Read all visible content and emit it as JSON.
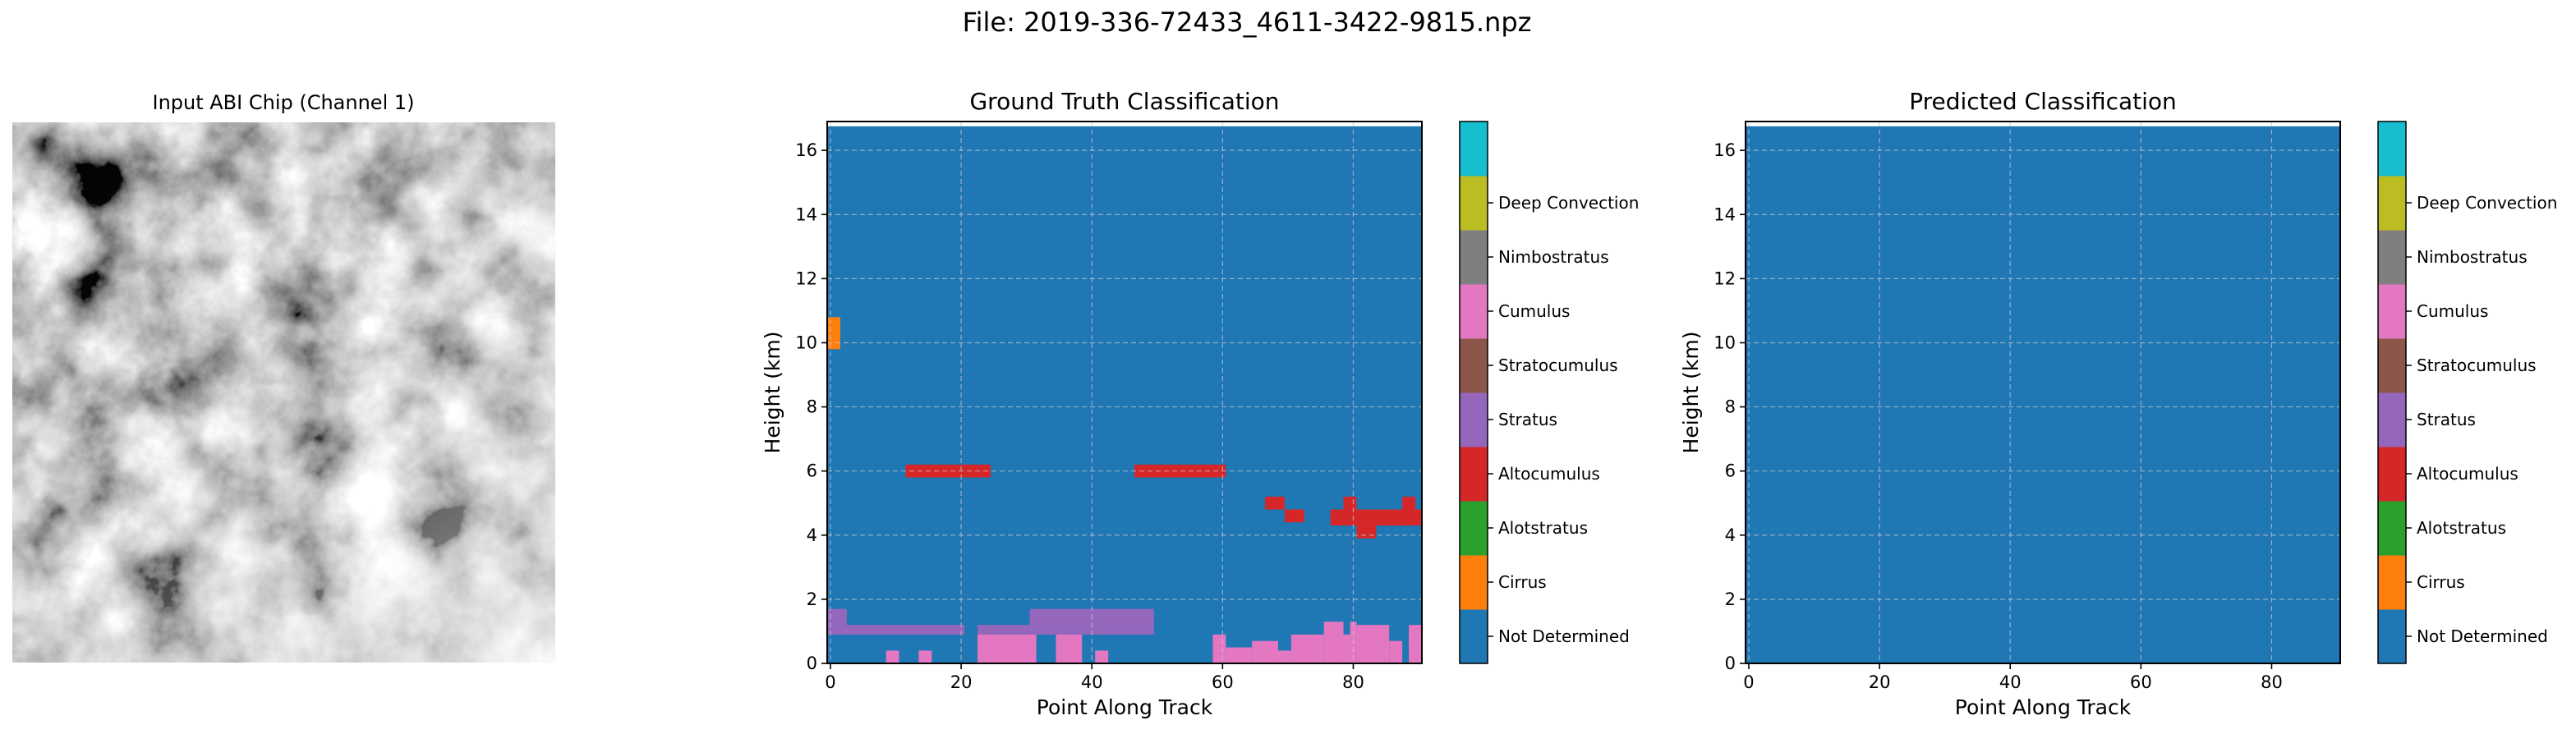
{
  "figure": {
    "title": "File: 2019-336-72433_4611-3422-9815.npz"
  },
  "input_panel": {
    "title": "Input ABI Chip (Channel 1)"
  },
  "colors": {
    "Not Determined": "#1f77b4",
    "Cirrus": "#ff7f0e",
    "Alotstratus": "#2ca02c",
    "Altocumulus": "#d62728",
    "Stratus": "#9467bd",
    "Stratocumulus": "#8c564b",
    "Cumulus": "#e377c2",
    "Nimbostratus": "#7f7f7f",
    "Deep Convection": "#bcbd22",
    "top": "#17becf"
  },
  "legend": {
    "labels": [
      "Not Determined",
      "Cirrus",
      "Alotstratus",
      "Altocumulus",
      "Stratus",
      "Stratocumulus",
      "Cumulus",
      "Nimbostratus",
      "Deep Convection"
    ]
  },
  "chart_data": [
    {
      "type": "heatmap",
      "title": "Ground Truth Classification",
      "xlabel": "Point Along Track",
      "ylabel": "Height (km)",
      "xlim": [
        -0.5,
        90.5
      ],
      "ylim": [
        0,
        16.9
      ],
      "xticks": [
        0,
        20,
        40,
        60,
        80
      ],
      "yticks": [
        0,
        2,
        4,
        6,
        8,
        10,
        12,
        14,
        16
      ],
      "grid": true,
      "background_class": "Not Determined",
      "regions": [
        {
          "class": "Cirrus",
          "x": [
            -0.5,
            1.5
          ],
          "y": [
            9.8,
            10.8
          ]
        },
        {
          "class": "Altocumulus",
          "x": [
            11.5,
            24.5
          ],
          "y": [
            5.8,
            6.2
          ]
        },
        {
          "class": "Altocumulus",
          "x": [
            46.5,
            60.5
          ],
          "y": [
            5.8,
            6.2
          ]
        },
        {
          "class": "Altocumulus",
          "x": [
            66.5,
            69.5
          ],
          "y": [
            4.8,
            5.2
          ]
        },
        {
          "class": "Altocumulus",
          "x": [
            69.5,
            72.5
          ],
          "y": [
            4.4,
            4.8
          ]
        },
        {
          "class": "Altocumulus",
          "x": [
            76.5,
            90.5
          ],
          "y": [
            4.3,
            4.8
          ]
        },
        {
          "class": "Altocumulus",
          "x": [
            78.5,
            80.5
          ],
          "y": [
            4.8,
            5.2
          ]
        },
        {
          "class": "Altocumulus",
          "x": [
            80.5,
            83.5
          ],
          "y": [
            3.9,
            4.3
          ]
        },
        {
          "class": "Altocumulus",
          "x": [
            87.5,
            89.5
          ],
          "y": [
            4.8,
            5.2
          ]
        },
        {
          "class": "Stratus",
          "x": [
            -0.5,
            20.5
          ],
          "y": [
            0.9,
            1.2
          ]
        },
        {
          "class": "Stratus",
          "x": [
            -0.5,
            2.5
          ],
          "y": [
            1.2,
            1.7
          ]
        },
        {
          "class": "Stratus",
          "x": [
            22.5,
            49.5
          ],
          "y": [
            0.9,
            1.2
          ]
        },
        {
          "class": "Stratus",
          "x": [
            30.5,
            49.5
          ],
          "y": [
            1.2,
            1.7
          ]
        },
        {
          "class": "Cumulus",
          "x": [
            22.5,
            31.5
          ],
          "y": [
            0,
            0.9
          ]
        },
        {
          "class": "Cumulus",
          "x": [
            34.5,
            38.5
          ],
          "y": [
            0,
            0.9
          ]
        },
        {
          "class": "Cumulus",
          "x": [
            8.5,
            10.5
          ],
          "y": [
            0,
            0.4
          ]
        },
        {
          "class": "Cumulus",
          "x": [
            13.5,
            15.5
          ],
          "y": [
            0,
            0.4
          ]
        },
        {
          "class": "Cumulus",
          "x": [
            40.5,
            42.5
          ],
          "y": [
            0,
            0.4
          ]
        },
        {
          "class": "Cumulus",
          "x": [
            58.5,
            60.5
          ],
          "y": [
            0,
            0.9
          ]
        },
        {
          "class": "Cumulus",
          "x": [
            60.5,
            64.5
          ],
          "y": [
            0,
            0.5
          ]
        },
        {
          "class": "Cumulus",
          "x": [
            64.5,
            68.5
          ],
          "y": [
            0,
            0.7
          ]
        },
        {
          "class": "Cumulus",
          "x": [
            68.5,
            70.5
          ],
          "y": [
            0,
            0.4
          ]
        },
        {
          "class": "Cumulus",
          "x": [
            70.5,
            75.5
          ],
          "y": [
            0,
            0.9
          ]
        },
        {
          "class": "Cumulus",
          "x": [
            75.5,
            78.5
          ],
          "y": [
            0,
            1.3
          ]
        },
        {
          "class": "Cumulus",
          "x": [
            78.5,
            79.5
          ],
          "y": [
            0,
            0.9
          ]
        },
        {
          "class": "Cumulus",
          "x": [
            79.5,
            80.5
          ],
          "y": [
            0,
            1.3
          ]
        },
        {
          "class": "Cumulus",
          "x": [
            80.5,
            85.5
          ],
          "y": [
            0,
            1.2
          ]
        },
        {
          "class": "Cumulus",
          "x": [
            85.5,
            87.5
          ],
          "y": [
            0,
            0.7
          ]
        },
        {
          "class": "Cumulus",
          "x": [
            88.5,
            90.5
          ],
          "y": [
            0,
            0.9
          ]
        },
        {
          "class": "Cumulus",
          "x": [
            88.5,
            90.5
          ],
          "y": [
            0.4,
            1.2
          ]
        }
      ]
    },
    {
      "type": "heatmap",
      "title": "Predicted Classification",
      "xlabel": "Point Along Track",
      "ylabel": "Height (km)",
      "xlim": [
        -0.5,
        90.5
      ],
      "ylim": [
        0,
        16.9
      ],
      "xticks": [
        0,
        20,
        40,
        60,
        80
      ],
      "yticks": [
        0,
        2,
        4,
        6,
        8,
        10,
        12,
        14,
        16
      ],
      "grid": true,
      "background_class": "Not Determined",
      "regions": []
    }
  ]
}
